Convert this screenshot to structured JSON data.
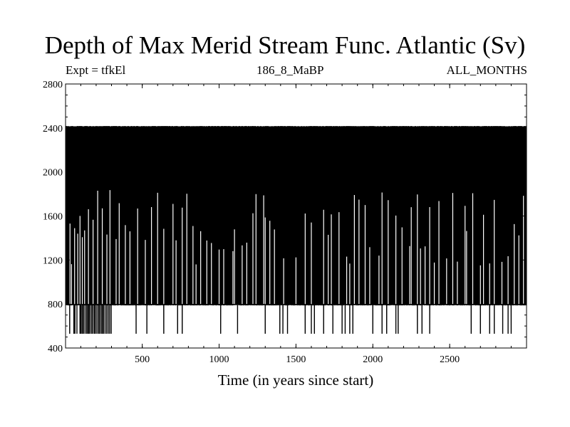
{
  "header": {
    "title": "Depth of Max Merid Stream Func. Atlantic (Sv)",
    "left_note": "Expt = tfkEl",
    "center_note": "186_8_MaBP",
    "right_note": "ALL_MONTHS"
  },
  "chart_data": {
    "type": "line",
    "title": "Depth of Max Merid Stream Func. Atlantic (Sv)",
    "xlabel": "Time (in years since start)",
    "ylabel": "",
    "xlim": [
      1,
      3000
    ],
    "ylim": [
      400,
      2800
    ],
    "xticks": [
      500,
      1000,
      1500,
      2000,
      2500
    ],
    "yticks": [
      400,
      800,
      1200,
      1600,
      2000,
      2400,
      2800
    ],
    "xtick_labels": [
      "500",
      "1000",
      "1500",
      "2000",
      "2500"
    ],
    "ytick_labels": [
      "400",
      "800",
      "1200",
      "1600",
      "2000",
      "2400",
      "2800"
    ],
    "grid": false,
    "line_color": "#000000",
    "series": [
      {
        "levels": [
          530,
          790,
          1190,
          1800,
          2415
        ],
        "dominant_range": [
          790,
          2415
        ],
        "low_excursion_years": [
          28,
          55,
          62,
          75,
          95,
          102,
          110,
          118,
          128,
          138,
          145,
          152,
          160,
          170,
          178,
          188,
          195,
          205,
          215,
          222,
          232,
          240,
          248,
          258,
          268,
          278,
          288,
          298,
          460,
          530,
          640,
          730,
          760,
          1010,
          1120,
          1300,
          1395,
          1415,
          1445,
          1560,
          1600,
          1620,
          1680,
          1740,
          1800,
          1820,
          1850,
          1870,
          2000,
          2060,
          2090,
          2150,
          2165,
          2290,
          2320,
          2370,
          2640,
          2700,
          2760,
          2790,
          2845,
          2880,
          2900
        ],
        "high_spike_years": [
          30,
          40,
          60,
          80,
          95,
          110,
          125,
          150,
          180,
          210,
          240,
          270,
          290,
          330,
          350,
          390,
          420,
          470,
          520,
          560,
          600,
          640,
          700,
          720,
          760,
          790,
          830,
          850,
          880,
          920,
          950,
          1000,
          1030,
          1090,
          1100,
          1150,
          1180,
          1220,
          1240,
          1290,
          1300,
          1330,
          1360,
          1420,
          1500,
          1560,
          1600,
          1680,
          1710,
          1730,
          1780,
          1830,
          1850,
          1880,
          1910,
          1950,
          1980,
          2040,
          2060,
          2100,
          2150,
          2190,
          2240,
          2250,
          2290,
          2310,
          2340,
          2370,
          2400,
          2430,
          2480,
          2520,
          2550,
          2600,
          2610,
          2650,
          2700,
          2720,
          2760,
          2790,
          2840,
          2880,
          2920,
          2950,
          2980
        ],
        "notes_low_gaps_in_band": [
          2000,
          2060,
          2090,
          2290,
          2840,
          2880
        ]
      }
    ]
  }
}
